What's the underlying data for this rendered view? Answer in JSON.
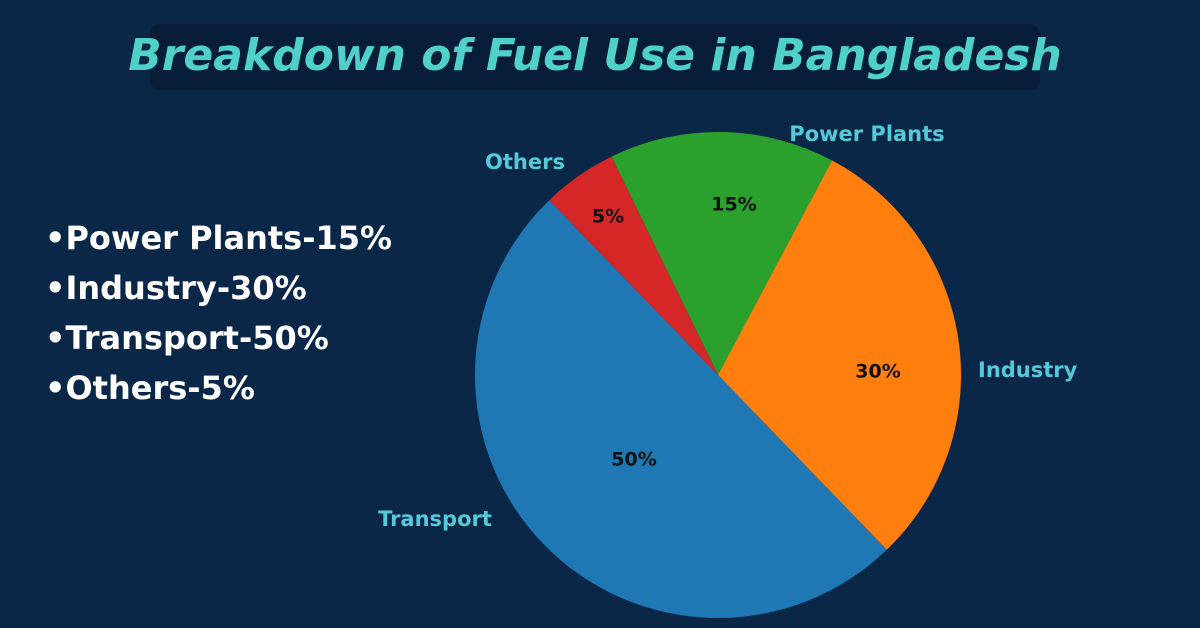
{
  "chart_data": {
    "type": "pie",
    "title": "Breakdown of Fuel Use in Bangladesh",
    "categories": [
      "Power Plants",
      "Industry",
      "Transport",
      "Others"
    ],
    "values": [
      15,
      30,
      50,
      5
    ],
    "value_labels": [
      "15%",
      "30%",
      "50%",
      "5%"
    ],
    "colors": [
      "#2ca02c",
      "#ff7f0e",
      "#1f77b4",
      "#d62728"
    ]
  },
  "bullet_list": [
    "•Power Plants-15%",
    "•Industry-30%",
    "•Transport-50%",
    "•Others-5%"
  ]
}
